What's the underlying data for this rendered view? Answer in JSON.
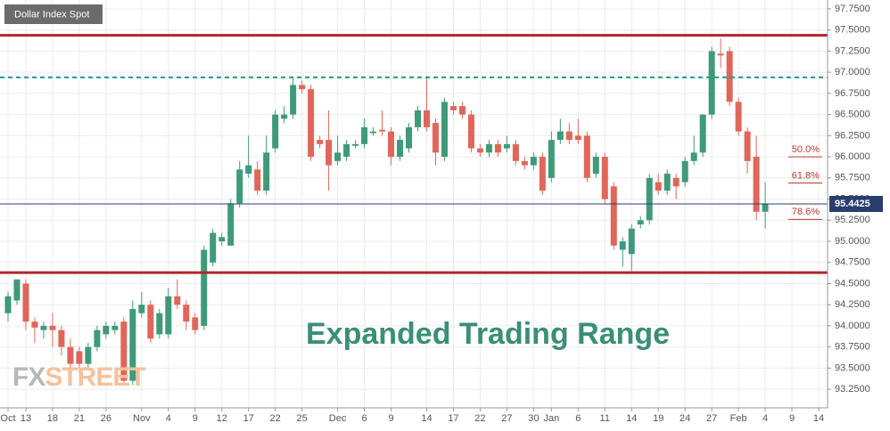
{
  "chart_data": {
    "type": "candlestick",
    "legend": "Dollar Index Spot",
    "annotation": "Expanded Trading Range",
    "watermark": [
      "FX",
      "STREET"
    ],
    "up_color": "#3f9a79",
    "down_color": "#e0665a",
    "grid": true,
    "x": [
      0,
      1,
      2,
      3,
      4,
      5,
      6,
      7,
      8,
      9,
      10,
      11,
      12,
      13,
      14,
      15,
      16,
      17,
      18,
      19,
      20,
      21,
      22,
      23,
      24,
      25,
      26,
      27,
      28,
      29,
      30,
      31,
      32,
      33,
      34,
      35,
      36,
      37,
      38,
      39,
      40,
      41,
      42,
      43,
      44,
      45,
      46,
      47,
      48,
      49,
      50,
      51,
      52,
      53,
      54,
      55,
      56,
      57,
      58,
      59,
      60,
      61,
      62,
      63,
      64,
      65,
      66,
      67,
      68,
      69,
      70,
      71,
      72,
      73,
      74,
      75,
      76,
      77,
      78,
      79,
      80,
      81,
      82,
      83,
      84,
      85
    ],
    "open": [
      94.15,
      94.3,
      94.5,
      94.05,
      93.95,
      94.0,
      93.95,
      93.75,
      93.7,
      93.55,
      93.75,
      93.9,
      93.95,
      94.05,
      93.35,
      94.15,
      94.25,
      93.9,
      93.9,
      94.35,
      94.25,
      94.1,
      94.0,
      94.75,
      95.0,
      94.95,
      95.45,
      95.8,
      95.85,
      95.6,
      96.1,
      96.45,
      96.5,
      96.85,
      96.8,
      96.2,
      96.2,
      95.95,
      96.0,
      96.13,
      96.15,
      96.28,
      96.32,
      96.3,
      96.0,
      96.1,
      96.35,
      96.55,
      96.4,
      96.0,
      96.6,
      96.6,
      96.5,
      96.1,
      96.05,
      96.15,
      96.1,
      96.15,
      95.95,
      95.9,
      96.0,
      95.75,
      96.2,
      96.3,
      96.25,
      96.25,
      95.8,
      96.0,
      95.65,
      94.9,
      94.85,
      95.2,
      95.25,
      95.7,
      95.6,
      95.75,
      95.7,
      95.95,
      96.05,
      96.5,
      97.22,
      97.25,
      96.65,
      96.3,
      96.0,
      95.35
    ],
    "high": [
      94.4,
      94.55,
      94.55,
      94.1,
      94.05,
      94.15,
      94.0,
      93.85,
      93.75,
      93.8,
      94.0,
      94.05,
      94.05,
      94.1,
      94.3,
      94.4,
      94.3,
      94.2,
      94.45,
      94.55,
      94.3,
      94.15,
      94.95,
      95.15,
      95.1,
      95.5,
      95.95,
      96.25,
      95.95,
      96.25,
      96.55,
      96.6,
      96.95,
      96.9,
      96.85,
      96.25,
      96.55,
      96.25,
      96.2,
      96.2,
      96.45,
      96.35,
      96.55,
      96.35,
      96.25,
      96.4,
      96.6,
      96.95,
      96.45,
      96.7,
      96.65,
      96.65,
      96.55,
      96.15,
      96.2,
      96.2,
      96.25,
      96.2,
      96.0,
      96.05,
      96.05,
      96.3,
      96.45,
      96.4,
      96.45,
      96.3,
      96.05,
      96.05,
      95.7,
      95.05,
      95.2,
      95.3,
      95.8,
      95.8,
      95.85,
      95.8,
      96.0,
      96.25,
      96.5,
      97.3,
      97.4,
      97.3,
      96.7,
      96.35,
      96.25,
      95.7
    ],
    "low": [
      94.05,
      94.25,
      93.95,
      93.8,
      93.85,
      93.75,
      93.65,
      93.5,
      93.45,
      93.5,
      93.7,
      93.85,
      93.9,
      93.3,
      93.3,
      94.1,
      93.8,
      93.85,
      93.85,
      94.2,
      93.95,
      93.9,
      93.95,
      94.7,
      94.95,
      94.95,
      95.4,
      95.75,
      95.55,
      95.55,
      96.05,
      96.4,
      96.45,
      96.75,
      95.95,
      96.1,
      95.6,
      95.9,
      95.95,
      96.1,
      96.1,
      96.25,
      96.25,
      95.9,
      95.95,
      96.05,
      96.3,
      96.3,
      95.9,
      95.95,
      96.5,
      96.45,
      96.05,
      96.0,
      96.0,
      96.0,
      96.05,
      95.9,
      95.85,
      95.85,
      95.55,
      95.7,
      96.15,
      96.15,
      96.15,
      95.7,
      95.75,
      95.45,
      94.9,
      94.7,
      94.65,
      95.15,
      95.2,
      95.55,
      95.55,
      95.5,
      95.65,
      95.9,
      96.0,
      96.45,
      97.05,
      96.6,
      96.25,
      95.8,
      95.25,
      95.15
    ],
    "close": [
      94.35,
      94.55,
      94.05,
      93.98,
      94.0,
      93.95,
      93.75,
      93.55,
      93.55,
      93.75,
      93.95,
      94.0,
      94.0,
      93.35,
      94.2,
      94.25,
      93.85,
      94.15,
      94.35,
      94.25,
      94.05,
      93.95,
      94.9,
      95.1,
      95.05,
      95.45,
      95.85,
      95.9,
      95.6,
      96.05,
      96.5,
      96.5,
      96.85,
      96.8,
      96.0,
      96.15,
      95.9,
      96.05,
      96.15,
      96.15,
      96.35,
      96.3,
      96.3,
      96.0,
      96.2,
      96.35,
      96.55,
      96.35,
      96.05,
      96.65,
      96.55,
      96.5,
      96.1,
      96.05,
      96.15,
      96.05,
      96.15,
      95.95,
      95.9,
      96.0,
      95.6,
      96.2,
      96.3,
      96.2,
      96.2,
      95.75,
      96.0,
      95.5,
      94.95,
      95.0,
      95.15,
      95.25,
      95.75,
      95.6,
      95.8,
      95.65,
      95.95,
      96.05,
      96.5,
      97.25,
      97.2,
      96.65,
      96.3,
      95.95,
      95.35,
      95.44
    ],
    "levels": [
      {
        "value": 97.4375,
        "color": "#b0272b",
        "style": "solid"
      },
      {
        "value": 96.94,
        "color": "#1e9a8a",
        "style": "dashed"
      },
      {
        "value": 94.63,
        "color": "#b0272b",
        "style": "solid"
      }
    ],
    "last_price": 95.4425,
    "last_price_color": "#2a3d6e",
    "fib_levels": [
      {
        "label": "50.0%",
        "value": 96.0
      },
      {
        "label": "61.8%",
        "value": 95.69
      },
      {
        "label": "78.6%",
        "value": 95.26
      }
    ],
    "xlim": [
      -0.9,
      92
    ],
    "xticks": [
      {
        "value": 0,
        "label": "Oct"
      },
      {
        "value": 2,
        "label": "13"
      },
      {
        "value": 5,
        "label": "18"
      },
      {
        "value": 8,
        "label": "21"
      },
      {
        "value": 11,
        "label": "26"
      },
      {
        "value": 15,
        "label": "Nov"
      },
      {
        "value": 18,
        "label": "4"
      },
      {
        "value": 21,
        "label": "9"
      },
      {
        "value": 24,
        "label": "12"
      },
      {
        "value": 27,
        "label": "17"
      },
      {
        "value": 30,
        "label": "22"
      },
      {
        "value": 33,
        "label": "25"
      },
      {
        "value": 37,
        "label": "Dec"
      },
      {
        "value": 40,
        "label": "6"
      },
      {
        "value": 43,
        "label": "9"
      },
      {
        "value": 47,
        "label": "14"
      },
      {
        "value": 50,
        "label": "17"
      },
      {
        "value": 53,
        "label": "22"
      },
      {
        "value": 56,
        "label": "27"
      },
      {
        "value": 59,
        "label": "30"
      },
      {
        "value": 61,
        "label": "Jan"
      },
      {
        "value": 64,
        "label": "6"
      },
      {
        "value": 67,
        "label": "11"
      },
      {
        "value": 70,
        "label": "14"
      },
      {
        "value": 73,
        "label": "19"
      },
      {
        "value": 76,
        "label": "24"
      },
      {
        "value": 79,
        "label": "27"
      },
      {
        "value": 82,
        "label": "Feb"
      },
      {
        "value": 85,
        "label": "4"
      },
      {
        "value": 88,
        "label": "9"
      },
      {
        "value": 91,
        "label": "14"
      }
    ],
    "ylim": [
      93.03,
      97.855
    ],
    "yticks": [
      {
        "value": 97.75,
        "label": "97.7500"
      },
      {
        "value": 97.5,
        "label": "97.5000"
      },
      {
        "value": 97.25,
        "label": "97.2500"
      },
      {
        "value": 97.0,
        "label": "97.0000"
      },
      {
        "value": 96.75,
        "label": "96.7500"
      },
      {
        "value": 96.5,
        "label": "96.5000"
      },
      {
        "value": 96.25,
        "label": "96.2500"
      },
      {
        "value": 96.0,
        "label": "96.0000"
      },
      {
        "value": 95.75,
        "label": "95.7500"
      },
      {
        "value": 95.5,
        "label": "95.5000"
      },
      {
        "value": 95.25,
        "label": "95.2500"
      },
      {
        "value": 95.0,
        "label": "95.0000"
      },
      {
        "value": 94.75,
        "label": "94.7500"
      },
      {
        "value": 94.5,
        "label": "94.5000"
      },
      {
        "value": 94.25,
        "label": "94.2500"
      },
      {
        "value": 94.0,
        "label": "94.0000"
      },
      {
        "value": 93.75,
        "label": "93.7500"
      },
      {
        "value": 93.5,
        "label": "93.5000"
      },
      {
        "value": 93.25,
        "label": "93.2500"
      }
    ]
  }
}
